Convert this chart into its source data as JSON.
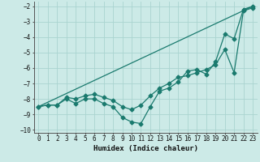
{
  "xlabel": "Humidex (Indice chaleur)",
  "background_color": "#cceae7",
  "grid_color": "#aad4d0",
  "line_color": "#1a7a6e",
  "xlim": [
    -0.5,
    23.5
  ],
  "ylim": [
    -10.2,
    -1.7
  ],
  "xticks": [
    0,
    1,
    2,
    3,
    4,
    5,
    6,
    7,
    8,
    9,
    10,
    11,
    12,
    13,
    14,
    15,
    16,
    17,
    18,
    19,
    20,
    21,
    22,
    23
  ],
  "yticks": [
    -10,
    -9,
    -8,
    -7,
    -6,
    -5,
    -4,
    -3,
    -2
  ],
  "series1_x": [
    0,
    1,
    2,
    3,
    4,
    5,
    6,
    7,
    8,
    9,
    10,
    11,
    12,
    13,
    14,
    15,
    16,
    17,
    18,
    19,
    20,
    21,
    22,
    23
  ],
  "series1_y": [
    -8.5,
    -8.4,
    -8.4,
    -8.0,
    -8.3,
    -8.0,
    -8.0,
    -8.3,
    -8.5,
    -9.2,
    -9.5,
    -9.6,
    -8.5,
    -7.5,
    -7.3,
    -6.9,
    -6.2,
    -6.1,
    -6.4,
    -5.6,
    -3.8,
    -4.1,
    -2.2,
    -2.0
  ],
  "series2_x": [
    0,
    1,
    2,
    3,
    4,
    5,
    6,
    7,
    8,
    9,
    10,
    11,
    12,
    13,
    14,
    15,
    16,
    17,
    18,
    19,
    20,
    21,
    22,
    23
  ],
  "series2_y": [
    -8.5,
    -8.4,
    -8.4,
    -7.9,
    -8.0,
    -7.8,
    -7.7,
    -7.9,
    -8.1,
    -8.5,
    -8.7,
    -8.4,
    -7.8,
    -7.3,
    -7.0,
    -6.6,
    -6.5,
    -6.3,
    -6.1,
    -5.8,
    -4.8,
    -6.3,
    -2.3,
    -2.1
  ],
  "series3_x": [
    0,
    23
  ],
  "series3_y": [
    -8.5,
    -2.0
  ],
  "marker": "D",
  "markersize": 2.5,
  "linewidth": 0.9
}
